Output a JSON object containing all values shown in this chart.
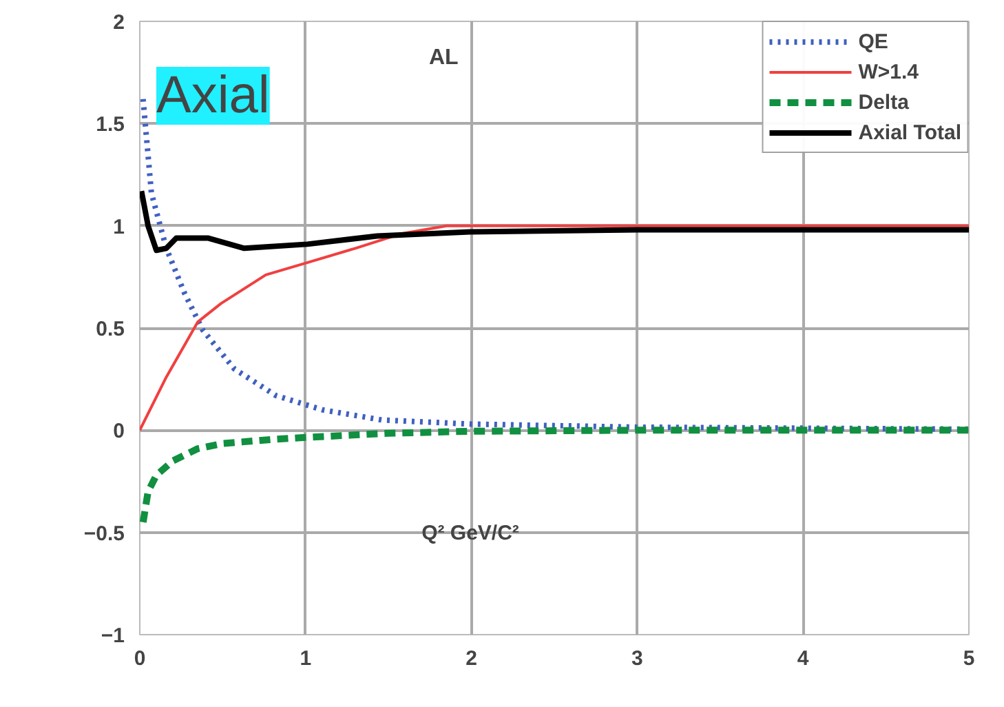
{
  "chart_data": {
    "type": "line",
    "title": "Axial",
    "annotations": [
      "AL"
    ],
    "xlabel": "Q² GeV/C²",
    "xlim": [
      0,
      5
    ],
    "ylim": [
      -1,
      2
    ],
    "xticks": [
      0,
      1,
      2,
      3,
      4,
      5
    ],
    "yticks": [
      -1,
      -0.5,
      0,
      0.5,
      1,
      1.5,
      2
    ],
    "grid": true,
    "legend": "top right",
    "series": [
      {
        "name": "QE",
        "color": "#4060c0",
        "line_style": "dotted",
        "x": [
          0.02,
          0.07,
          0.16,
          0.27,
          0.38,
          0.57,
          0.82,
          1.1,
          1.46,
          2,
          3,
          4,
          5
        ],
        "values": [
          1.62,
          1.16,
          0.89,
          0.67,
          0.49,
          0.3,
          0.17,
          0.1,
          0.05,
          0.03,
          0.015,
          0.01,
          0.005
        ]
      },
      {
        "name": "W>1.4",
        "color": "#f04040",
        "line_style": "solid",
        "x": [
          0,
          0.16,
          0.35,
          0.49,
          0.76,
          1.01,
          1.3,
          1.57,
          1.85,
          2.5,
          3,
          4,
          5
        ],
        "values": [
          0,
          0.26,
          0.53,
          0.62,
          0.76,
          0.82,
          0.89,
          0.96,
          1.0,
          1.0,
          1.0,
          1.0,
          1.0
        ]
      },
      {
        "name": "Delta",
        "color": "#109040",
        "line_style": "dashed",
        "x": [
          0.02,
          0.05,
          0.1,
          0.2,
          0.35,
          0.5,
          0.8,
          1.0,
          1.5,
          2,
          3,
          4,
          5
        ],
        "values": [
          -0.45,
          -0.3,
          -0.22,
          -0.15,
          -0.09,
          -0.065,
          -0.045,
          -0.035,
          -0.015,
          -0.005,
          0,
          0,
          0
        ]
      },
      {
        "name": "Axial Total",
        "color": "#000000",
        "line_style": "solid",
        "x": [
          0.01,
          0.05,
          0.1,
          0.16,
          0.22,
          0.41,
          0.63,
          1.01,
          1.43,
          1.99,
          3,
          4,
          5
        ],
        "values": [
          1.17,
          1.0,
          0.88,
          0.89,
          0.94,
          0.94,
          0.89,
          0.91,
          0.95,
          0.97,
          0.98,
          0.98,
          0.98
        ]
      }
    ]
  }
}
